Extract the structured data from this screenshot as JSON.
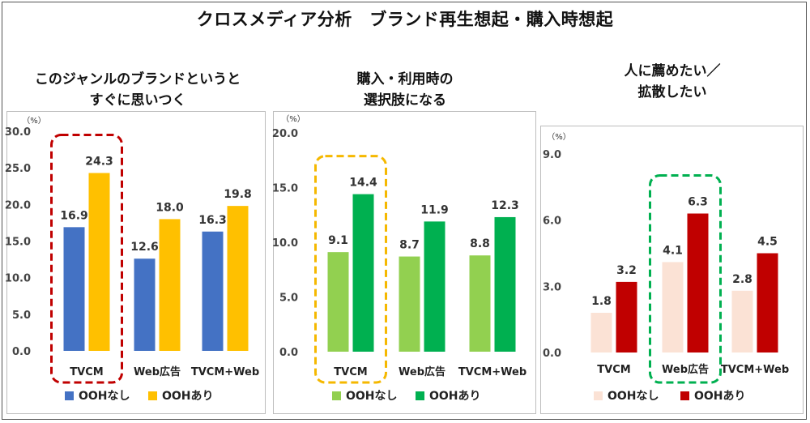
{
  "title": "クロスメディア分析　ブランド再生想起・購入時想起",
  "chart_data": [
    {
      "type": "bar",
      "title": "このジャンルのブランドというとすぐに思いつく",
      "title_lines": [
        "このジャンルのブランドというと",
        "すぐに思いつく"
      ],
      "unit": "（%）",
      "categories": [
        "TVCM",
        "Web広告",
        "TVCM+Web"
      ],
      "series": [
        {
          "name": "OOHなし",
          "color": "#4472c4",
          "values": [
            16.9,
            12.6,
            16.3
          ]
        },
        {
          "name": "OOHあり",
          "color": "#ffc000",
          "values": [
            24.3,
            18.0,
            19.8
          ]
        }
      ],
      "yticks": [
        "0.0",
        "5.0",
        "10.0",
        "15.0",
        "20.0",
        "25.0",
        "30.0"
      ],
      "ylim": [
        0,
        30
      ],
      "highlight_category": "TVCM",
      "highlight_color": "#c00000",
      "legend_position": "bottom"
    },
    {
      "type": "bar",
      "title": "購入・利用時の選択肢になる",
      "title_lines": [
        "購入・利用時の",
        "選択肢になる"
      ],
      "unit": "（%）",
      "categories": [
        "TVCM",
        "Web広告",
        "TVCM+Web"
      ],
      "series": [
        {
          "name": "OOHなし",
          "color": "#92d050",
          "values": [
            9.1,
            8.7,
            8.8
          ]
        },
        {
          "name": "OOHあり",
          "color": "#00b050",
          "values": [
            14.4,
            11.9,
            12.3
          ]
        }
      ],
      "yticks": [
        "0.0",
        "5.0",
        "10.0",
        "15.0",
        "20.0"
      ],
      "ylim": [
        0,
        20
      ],
      "highlight_category": "TVCM",
      "highlight_color": "#f5b800",
      "legend_position": "bottom"
    },
    {
      "type": "bar",
      "title": "人に薦めたい／拡散したい",
      "title_lines": [
        "人に薦めたい／",
        "拡散したい"
      ],
      "unit": "（%）",
      "categories": [
        "TVCM",
        "Web広告",
        "TVCM+Web"
      ],
      "series": [
        {
          "name": "OOHなし",
          "color": "#fbe2d5",
          "values": [
            1.8,
            4.1,
            2.8
          ]
        },
        {
          "name": "OOHあり",
          "color": "#c00000",
          "values": [
            3.2,
            6.3,
            4.5
          ]
        }
      ],
      "yticks": [
        "0.0",
        "3.0",
        "6.0",
        "9.0"
      ],
      "ylim": [
        0,
        9
      ],
      "highlight_category": "Web広告",
      "highlight_color": "#00b050",
      "legend_position": "bottom"
    }
  ]
}
